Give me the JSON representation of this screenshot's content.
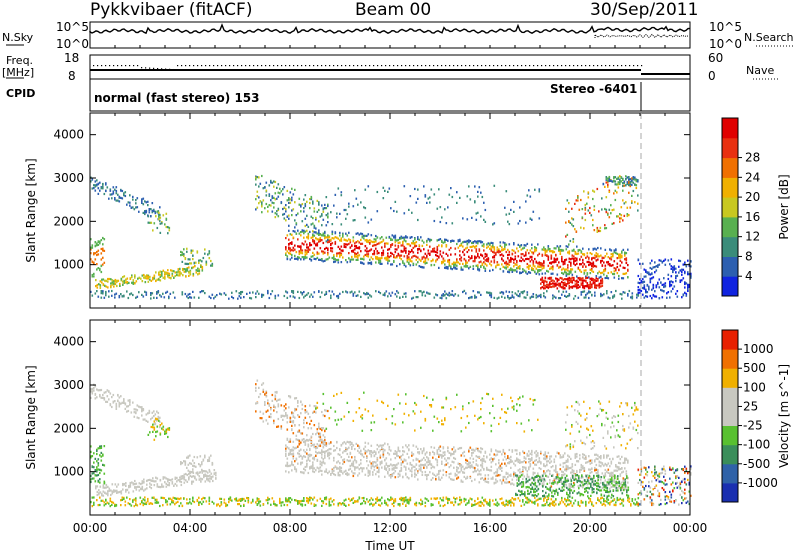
{
  "header": {
    "title": "Pykkvibaer (fitACF)",
    "beam": "Beam 00",
    "date": "30/Sep/2011"
  },
  "side_labels": {
    "nsky": "N.Sky",
    "nsearch": "N.Search",
    "freq": "Freq.",
    "freq_unit": "[MHz]",
    "nave": "Nave",
    "cpid": "CPID"
  },
  "noise_axis": {
    "left_ticks": [
      "10^5",
      "10^0"
    ],
    "right_ticks": [
      "10^5",
      "10^0"
    ]
  },
  "freq_axis": {
    "left_ticks": [
      "18",
      "8"
    ],
    "right_ticks": [
      "60",
      "0"
    ]
  },
  "cpid_labels": {
    "mode": "normal (fast stereo) 153",
    "stereo": "Stereo -6401"
  },
  "chart_data": [
    {
      "type": "heatmap",
      "panel": "power",
      "ylabel": "Slant Range [km]",
      "xlabel": "",
      "y_ticks": [
        "1000",
        "2000",
        "3000",
        "4000"
      ],
      "colorbar": {
        "label": "Power [dB]",
        "ticks": [
          "4",
          "8",
          "12",
          "16",
          "20",
          "24",
          "28"
        ],
        "colors": [
          "#1024e0",
          "#2c5fb0",
          "#3a8c7a",
          "#58b050",
          "#c8c820",
          "#f0b000",
          "#f07000",
          "#e83010",
          "#e00000"
        ]
      }
    },
    {
      "type": "heatmap",
      "panel": "velocity",
      "ylabel": "Slant Range [km]",
      "xlabel": "Time UT",
      "x_ticks": [
        "00:00",
        "04:00",
        "08:00",
        "12:00",
        "16:00",
        "20:00",
        "00:00"
      ],
      "y_ticks": [
        "1000",
        "2000",
        "3000",
        "4000"
      ],
      "colorbar": {
        "label": "Velocity [m s^-1]",
        "ticks": [
          "1000",
          "500",
          "100",
          "25",
          "-25",
          "-100",
          "-500",
          "-1000"
        ],
        "colors": [
          "#1a2fb0",
          "#2f62a8",
          "#3a8e5a",
          "#58c030",
          "#c8c8c0",
          "#c8c8c0",
          "#f0b000",
          "#f07000",
          "#e82000"
        ]
      }
    }
  ]
}
